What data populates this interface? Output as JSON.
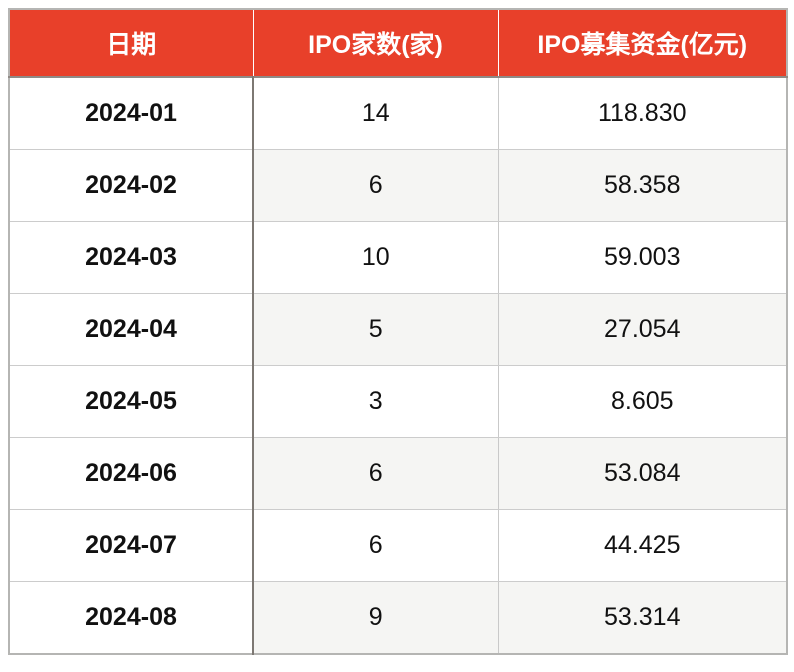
{
  "table": {
    "columns": [
      "日期",
      "IPO家数(家)",
      "IPO募集资金(亿元)"
    ],
    "rows": [
      {
        "date": "2024-01",
        "ipo_count": "14",
        "ipo_funds": "118.830"
      },
      {
        "date": "2024-02",
        "ipo_count": "6",
        "ipo_funds": "58.358"
      },
      {
        "date": "2024-03",
        "ipo_count": "10",
        "ipo_funds": "59.003"
      },
      {
        "date": "2024-04",
        "ipo_count": "5",
        "ipo_funds": "27.054"
      },
      {
        "date": "2024-05",
        "ipo_count": "3",
        "ipo_funds": "8.605"
      },
      {
        "date": "2024-06",
        "ipo_count": "6",
        "ipo_funds": "53.084"
      },
      {
        "date": "2024-07",
        "ipo_count": "6",
        "ipo_funds": "44.425"
      },
      {
        "date": "2024-08",
        "ipo_count": "9",
        "ipo_funds": "53.314"
      }
    ]
  },
  "colors": {
    "header_bg": "#E8402A",
    "header_text": "#FFFFFF",
    "header_border": "#8F8A86",
    "stripe_bg": "#F5F5F3",
    "border_light": "#CCCCCC",
    "border_dark": "#7D7873",
    "outer_border": "#B5B5B3",
    "cell_text": "#111111"
  },
  "chart_data": {
    "type": "table",
    "title": "",
    "columns": [
      "日期",
      "IPO家数(家)",
      "IPO募集资金(亿元)"
    ],
    "rows": [
      [
        "2024-01",
        14,
        118.83
      ],
      [
        "2024-02",
        6,
        58.358
      ],
      [
        "2024-03",
        10,
        59.003
      ],
      [
        "2024-04",
        5,
        27.054
      ],
      [
        "2024-05",
        3,
        8.605
      ],
      [
        "2024-06",
        6,
        53.084
      ],
      [
        "2024-07",
        6,
        44.425
      ],
      [
        "2024-08",
        9,
        53.314
      ]
    ],
    "layout_hints": {
      "header_fill": "#E8402A",
      "zebra_striping": "even rows, columns 2-3 only",
      "first_column_bold": true
    }
  }
}
